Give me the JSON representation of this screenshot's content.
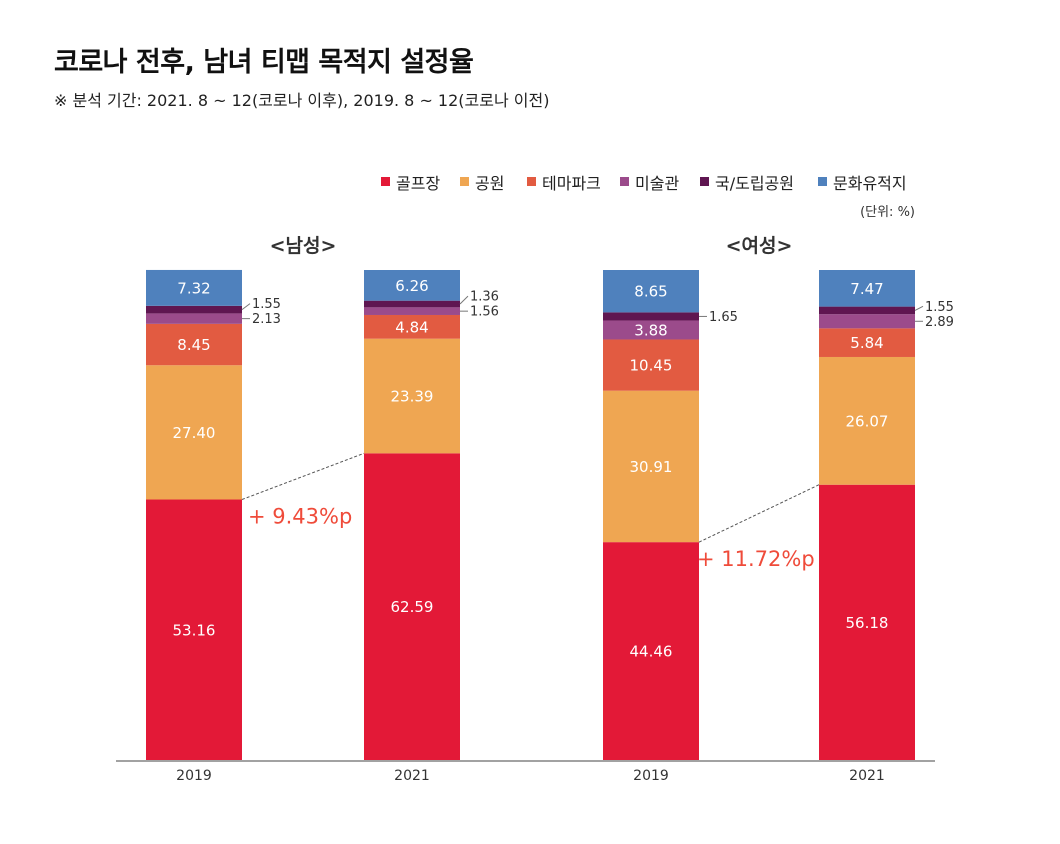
{
  "title": "코로나 전후, 남녀 티맵 목적지 설정율",
  "subtitle": "※ 분석 기간: 2021. 8 ~ 12(코로나 이후), 2019. 8 ~ 12(코로나 이전)",
  "chart_data": {
    "type": "bar",
    "stacked": true,
    "unit_label": "(단위: %)",
    "ylim": [
      0,
      100
    ],
    "grid": false,
    "legend_placement": "top-right",
    "groups": [
      {
        "label": "<남성>",
        "categories": [
          "2019",
          "2021"
        ],
        "annotation": "+ 9.43%p"
      },
      {
        "label": "<여성>",
        "categories": [
          "2019",
          "2021"
        ],
        "annotation": "+ 11.72%p"
      }
    ],
    "categories": [
      "2019",
      "2021",
      "2019",
      "2021"
    ],
    "series": [
      {
        "name": "골프장",
        "color": "#e31937",
        "values": [
          53.16,
          62.59,
          44.46,
          56.18
        ]
      },
      {
        "name": "공원",
        "color": "#efa652",
        "values": [
          27.4,
          23.39,
          30.91,
          26.07
        ]
      },
      {
        "name": "테마파크",
        "color": "#e25b41",
        "values": [
          8.45,
          4.84,
          10.45,
          5.84
        ]
      },
      {
        "name": "미술관",
        "color": "#9b4b8b",
        "values": [
          2.13,
          1.56,
          3.88,
          2.89
        ]
      },
      {
        "name": "국/도립공원",
        "color": "#5f1651",
        "values": [
          1.55,
          1.36,
          1.65,
          1.55
        ]
      },
      {
        "name": "문화유적지",
        "color": "#4f81bd",
        "values": [
          7.32,
          6.26,
          8.65,
          7.47
        ]
      }
    ],
    "annotation_color": "#ef4b3a"
  }
}
